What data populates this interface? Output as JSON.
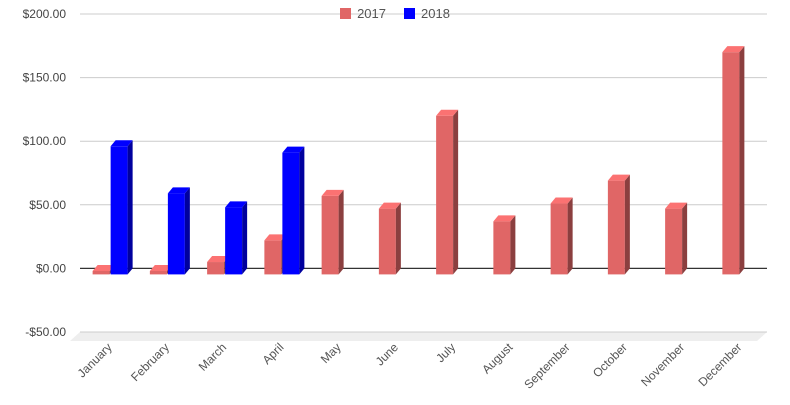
{
  "chart_data": {
    "type": "bar",
    "title": "",
    "xlabel": "",
    "ylabel": "",
    "categories": [
      "January",
      "February",
      "March",
      "April",
      "May",
      "June",
      "July",
      "August",
      "September",
      "October",
      "November",
      "December"
    ],
    "series": [
      {
        "name": "2017",
        "color": "#e06666",
        "values": [
          -2,
          -2,
          5,
          22,
          57,
          47,
          120,
          37,
          51,
          69,
          47,
          170
        ]
      },
      {
        "name": "2018",
        "color": "#0000ff",
        "values": [
          96,
          59,
          48,
          91,
          null,
          null,
          null,
          null,
          null,
          null,
          null,
          null
        ]
      }
    ],
    "ylim": [
      -50,
      200
    ],
    "y_ticks": [
      200,
      150,
      100,
      50,
      0,
      -50
    ],
    "y_tick_labels": [
      "$200.00",
      "$150.00",
      "$100.00",
      "$50.00",
      "$0.00",
      "-$50.00"
    ],
    "grid": true,
    "legend_position": "top-center",
    "style": "3d-bar"
  }
}
